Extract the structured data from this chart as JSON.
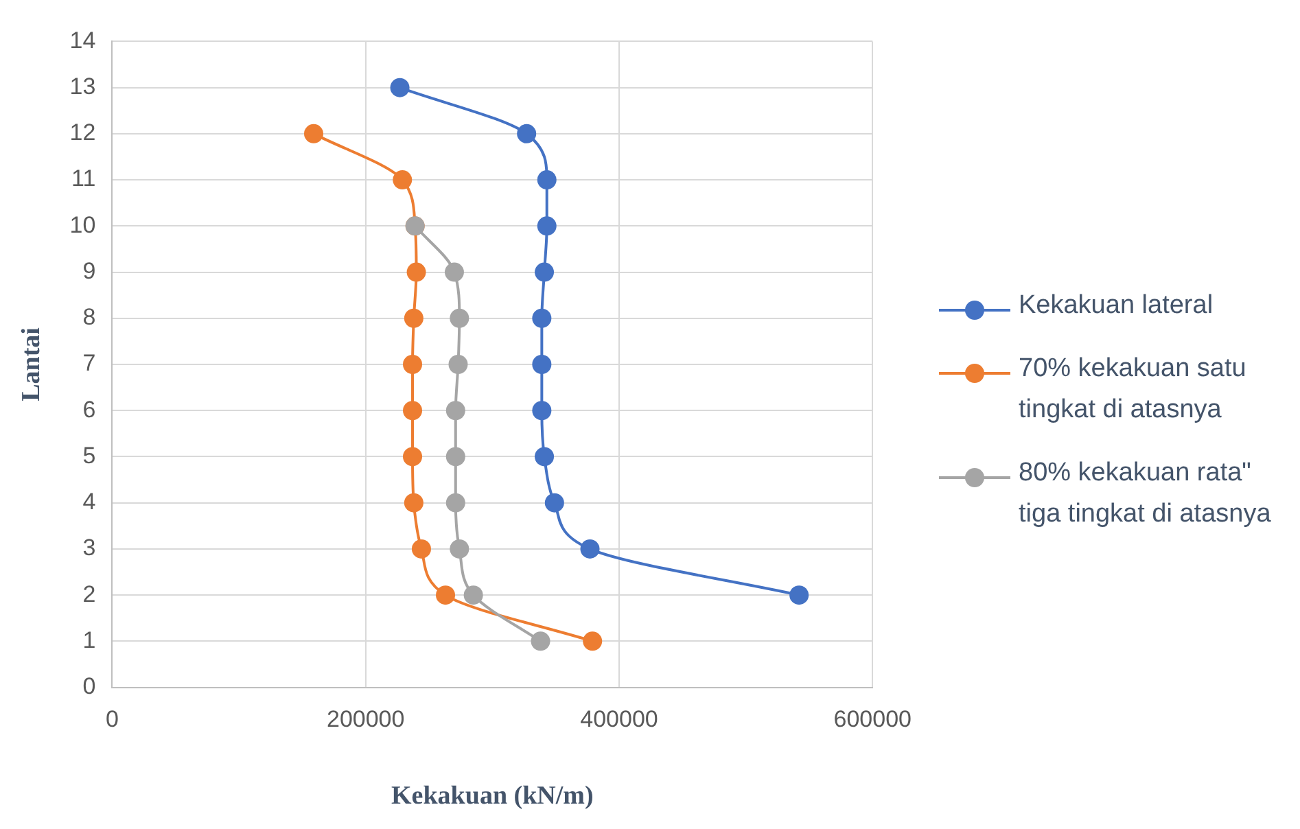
{
  "chart_data": {
    "type": "line",
    "xlabel": "Kekakuan (kN/m)",
    "ylabel": "Lantai",
    "xlim": [
      0,
      600000
    ],
    "xticks": [
      0,
      200000,
      400000,
      600000
    ],
    "ylim": [
      0,
      14
    ],
    "yticks": [
      0,
      1,
      2,
      3,
      4,
      5,
      6,
      7,
      8,
      9,
      10,
      11,
      12,
      13,
      14
    ],
    "grid": true,
    "legend": "right",
    "marker": "circle",
    "line_style": "solid",
    "series": [
      {
        "name": "Kekakuan lateral",
        "color": "#4472c4",
        "x": [
          227000,
          327000,
          343000,
          343000,
          341000,
          339000,
          339000,
          339000,
          341000,
          349000,
          377000,
          542000
        ],
        "values": [
          13,
          12,
          11,
          10,
          9,
          8,
          7,
          6,
          5,
          4,
          3,
          2
        ]
      },
      {
        "name": "70% kekakuan satu tingkat di atasnya",
        "color": "#ed7d31",
        "x": [
          159000,
          229000,
          239000,
          240000,
          238000,
          237000,
          237000,
          237000,
          238000,
          244000,
          263000,
          379000
        ],
        "values": [
          12,
          11,
          10,
          9,
          8,
          7,
          6,
          5,
          4,
          3,
          2,
          1
        ]
      },
      {
        "name": "80% kekakuan rata\" tiga tingkat di atasnya",
        "color": "#a5a5a5",
        "x": [
          239000,
          270000,
          274000,
          273000,
          271000,
          271000,
          271000,
          274000,
          285000,
          338000
        ],
        "values": [
          10,
          9,
          8,
          7,
          6,
          5,
          4,
          3,
          2,
          1
        ]
      }
    ]
  }
}
